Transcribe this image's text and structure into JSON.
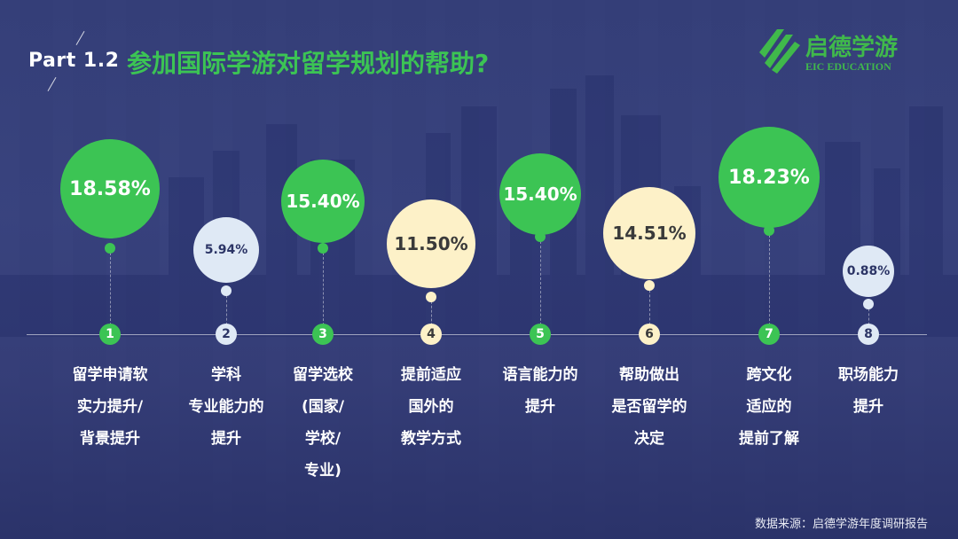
{
  "header": {
    "part": "Part 1.2",
    "title": "参加国际学游对留学规划的帮助?"
  },
  "logo": {
    "cn": "启德学游",
    "en": "EIC EDUCATION"
  },
  "source": "数据来源：启德学游年度调研报告",
  "colors": {
    "green": "#3cc454",
    "cream": "#fdf1c8",
    "pale_blue": "#dfe9f5"
  },
  "chart_data": {
    "type": "bubble",
    "items": [
      {
        "index": "1",
        "value": 18.58,
        "value_label": "18.58%",
        "style": "green",
        "label_lines": [
          "留学申请软",
          "实力提升/",
          "背景提升"
        ]
      },
      {
        "index": "2",
        "value": 5.94,
        "value_label": "5.94%",
        "style": "pale_blue",
        "label_lines": [
          "学科",
          "专业能力的",
          "提升"
        ]
      },
      {
        "index": "3",
        "value": 15.4,
        "value_label": "15.40%",
        "style": "green",
        "label_lines": [
          "留学选校",
          "(国家/",
          "学校/",
          "专业)"
        ]
      },
      {
        "index": "4",
        "value": 11.5,
        "value_label": "11.50%",
        "style": "cream",
        "label_lines": [
          "提前适应",
          "国外的",
          "教学方式"
        ]
      },
      {
        "index": "5",
        "value": 15.4,
        "value_label": "15.40%",
        "style": "green",
        "label_lines": [
          "语言能力的",
          "提升"
        ]
      },
      {
        "index": "6",
        "value": 14.51,
        "value_label": "14.51%",
        "style": "cream",
        "label_lines": [
          "帮助做出",
          "是否留学的",
          "决定"
        ]
      },
      {
        "index": "7",
        "value": 18.23,
        "value_label": "18.23%",
        "style": "green",
        "label_lines": [
          "跨文化",
          "适应的",
          "提前了解"
        ]
      },
      {
        "index": "8",
        "value": 0.88,
        "value_label": "0.88%",
        "style": "pale_blue",
        "label_lines": [
          "职场能力",
          "提升"
        ]
      }
    ]
  }
}
